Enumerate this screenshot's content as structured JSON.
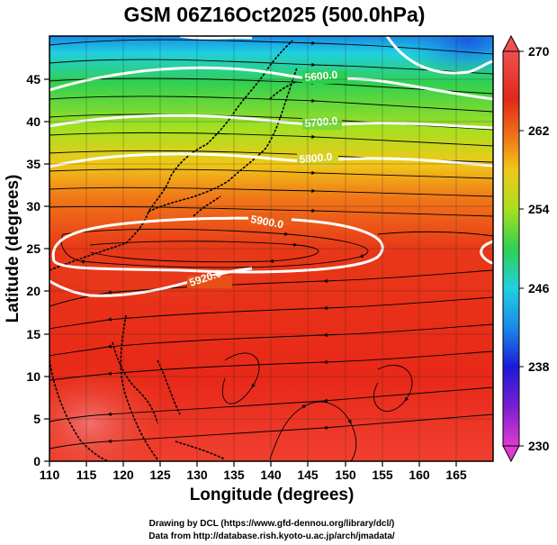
{
  "title": "GSM 06Z16Oct2025 (500.0hPa)",
  "x_axis": {
    "label": "Longitude (degrees)",
    "ticks": [
      "110",
      "115",
      "120",
      "125",
      "130",
      "135",
      "140",
      "145",
      "150",
      "155",
      "160",
      "165"
    ],
    "range": [
      110,
      170
    ]
  },
  "y_axis": {
    "label": "Latitude  (degrees)",
    "ticks": [
      "0",
      "5",
      "10",
      "15",
      "20",
      "25",
      "30",
      "35",
      "40",
      "45"
    ],
    "range": [
      0,
      50
    ]
  },
  "colorbar": {
    "labels": [
      "270",
      "262",
      "254",
      "246",
      "238",
      "230"
    ],
    "range": [
      230,
      270
    ],
    "colors": [
      "#e03ad0",
      "#7a1fd0",
      "#1a1ad8",
      "#1a8ae8",
      "#20d0e0",
      "#30d050",
      "#a8e020",
      "#f0c818",
      "#f07818",
      "#e02818",
      "#f05050"
    ]
  },
  "contours": [
    {
      "label": "5600.0"
    },
    {
      "label": "5700.0"
    },
    {
      "label": "5800.0"
    },
    {
      "label": "5900.0"
    },
    {
      "label": "5920.0"
    }
  ],
  "credits": {
    "line1": "Drawing by DCL (https://www.gfd-dennou.org/library/dcl/)",
    "line2": "Data from http://database.rish.kyoto-u.ac.jp/arch/jmadata/"
  }
}
